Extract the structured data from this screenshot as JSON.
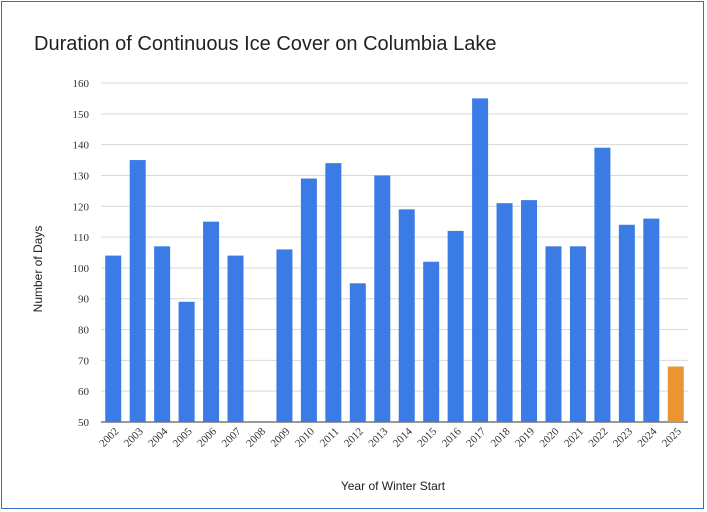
{
  "chart_data": {
    "type": "bar",
    "title": "Duration of Continuous Ice Cover on Columbia Lake",
    "xlabel": "Year of Winter Start",
    "ylabel": "Number of Days",
    "ylim": [
      50,
      160
    ],
    "yticks": [
      50,
      60,
      70,
      80,
      90,
      100,
      110,
      120,
      130,
      140,
      150,
      160
    ],
    "grid": true,
    "categories": [
      "2002",
      "2003",
      "2004",
      "2005",
      "2006",
      "2007",
      "2008",
      "2009",
      "2010",
      "2011",
      "2012",
      "2013",
      "2014",
      "2015",
      "2016",
      "2017",
      "2018",
      "2019",
      "2020",
      "2021",
      "2022",
      "2023",
      "2024",
      "2025"
    ],
    "values": [
      104,
      135,
      107,
      89,
      115,
      104,
      null,
      106,
      129,
      134,
      95,
      130,
      119,
      102,
      112,
      155,
      121,
      122,
      107,
      107,
      139,
      114,
      116,
      68
    ],
    "colors": {
      "bar": "#3b7be6",
      "highlight": "#ea9434",
      "highlight_category": "2025",
      "grid": "#d9d9d9"
    }
  }
}
